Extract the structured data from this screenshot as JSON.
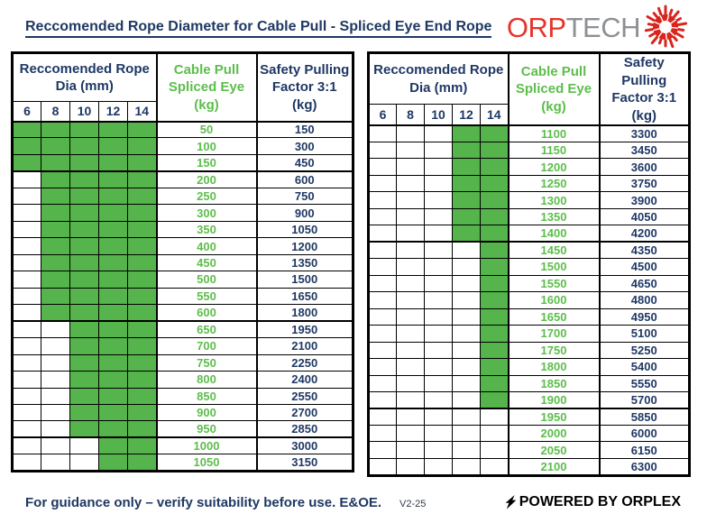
{
  "title": "Reccomended Rope Diameter for Cable Pull - Spliced Eye End Rope",
  "logo": {
    "text_red": "ORP",
    "text_gray": "TECH"
  },
  "colors": {
    "navy": "#1f3864",
    "green_fill": "#55b44b",
    "green_text": "#5cbe4b",
    "logo_red": "#e8332a",
    "logo_gray": "#8e9093",
    "starburst_red": "#d8251d"
  },
  "table_headers": {
    "dia_lines": [
      "Reccomended Rope",
      "Dia (mm)"
    ],
    "dia_sizes": [
      "6",
      "8",
      "10",
      "12",
      "14"
    ],
    "cable_lines": [
      "Cable Pull",
      "Spliced Eye",
      "(kg)"
    ],
    "safety_lines": [
      "Safety Pulling",
      "Factor 3:1",
      "(kg)"
    ]
  },
  "tables": [
    {
      "rows": [
        {
          "cable": "50",
          "safety": "150",
          "green_from": 0
        },
        {
          "cable": "100",
          "safety": "300",
          "green_from": 0
        },
        {
          "cable": "150",
          "safety": "450",
          "green_from": 0
        },
        {
          "cable": "200",
          "safety": "600",
          "green_from": 1
        },
        {
          "cable": "250",
          "safety": "750",
          "green_from": 1
        },
        {
          "cable": "300",
          "safety": "900",
          "green_from": 1
        },
        {
          "cable": "350",
          "safety": "1050",
          "green_from": 1
        },
        {
          "cable": "400",
          "safety": "1200",
          "green_from": 1
        },
        {
          "cable": "450",
          "safety": "1350",
          "green_from": 1
        },
        {
          "cable": "500",
          "safety": "1500",
          "green_from": 1
        },
        {
          "cable": "550",
          "safety": "1650",
          "green_from": 1
        },
        {
          "cable": "600",
          "safety": "1800",
          "green_from": 1
        },
        {
          "cable": "650",
          "safety": "1950",
          "green_from": 2
        },
        {
          "cable": "700",
          "safety": "2100",
          "green_from": 2
        },
        {
          "cable": "750",
          "safety": "2250",
          "green_from": 2
        },
        {
          "cable": "800",
          "safety": "2400",
          "green_from": 2
        },
        {
          "cable": "850",
          "safety": "2550",
          "green_from": 2
        },
        {
          "cable": "900",
          "safety": "2700",
          "green_from": 2
        },
        {
          "cable": "950",
          "safety": "2850",
          "green_from": 2
        },
        {
          "cable": "1000",
          "safety": "3000",
          "green_from": 3
        },
        {
          "cable": "1050",
          "safety": "3150",
          "green_from": 3
        }
      ]
    },
    {
      "rows": [
        {
          "cable": "1100",
          "safety": "3300",
          "green_from": 3
        },
        {
          "cable": "1150",
          "safety": "3450",
          "green_from": 3
        },
        {
          "cable": "1200",
          "safety": "3600",
          "green_from": 3
        },
        {
          "cable": "1250",
          "safety": "3750",
          "green_from": 3
        },
        {
          "cable": "1300",
          "safety": "3900",
          "green_from": 3
        },
        {
          "cable": "1350",
          "safety": "4050",
          "green_from": 3
        },
        {
          "cable": "1400",
          "safety": "4200",
          "green_from": 3
        },
        {
          "cable": "1450",
          "safety": "4350",
          "green_from": 4
        },
        {
          "cable": "1500",
          "safety": "4500",
          "green_from": 4
        },
        {
          "cable": "1550",
          "safety": "4650",
          "green_from": 4
        },
        {
          "cable": "1600",
          "safety": "4800",
          "green_from": 4
        },
        {
          "cable": "1650",
          "safety": "4950",
          "green_from": 4
        },
        {
          "cable": "1700",
          "safety": "5100",
          "green_from": 4
        },
        {
          "cable": "1750",
          "safety": "5250",
          "green_from": 4
        },
        {
          "cable": "1800",
          "safety": "5400",
          "green_from": 4
        },
        {
          "cable": "1850",
          "safety": "5550",
          "green_from": 4
        },
        {
          "cable": "1900",
          "safety": "5700",
          "green_from": 4
        },
        {
          "cable": "1950",
          "safety": "5850",
          "green_from": -1
        },
        {
          "cable": "2000",
          "safety": "6000",
          "green_from": -1
        },
        {
          "cable": "2050",
          "safety": "6150",
          "green_from": -1
        },
        {
          "cable": "2100",
          "safety": "6300",
          "green_from": -1
        }
      ]
    }
  ],
  "footer": {
    "note": "For guidance only – verify suitability before use. E&OE.",
    "version": "V2-25",
    "powered": "POWERED BY ORPLEX"
  }
}
